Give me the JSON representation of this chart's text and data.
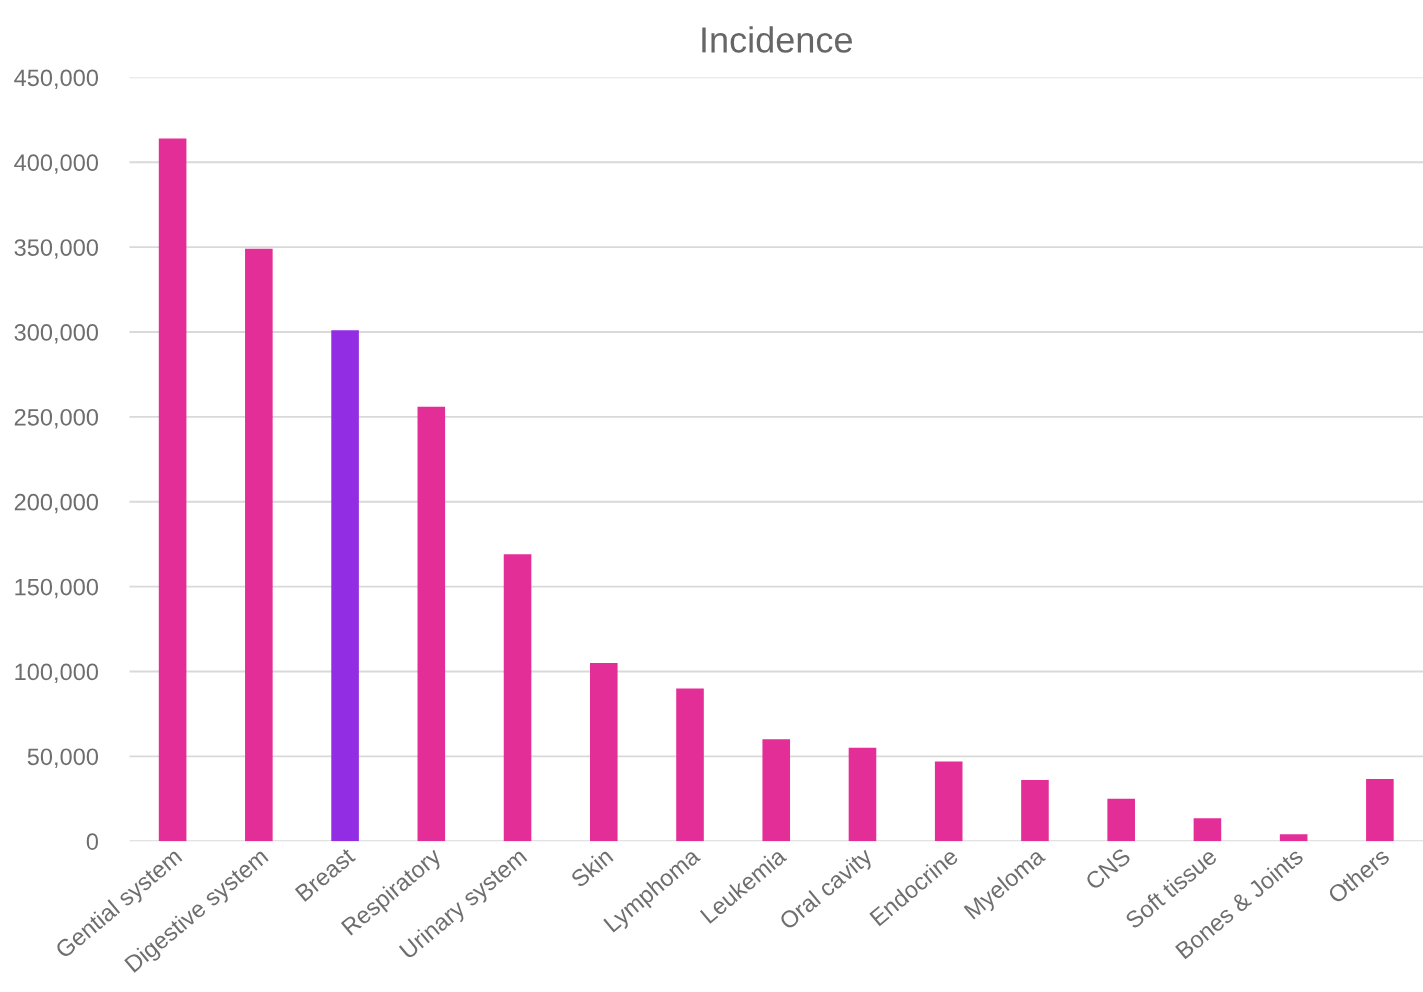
{
  "chart_data": {
    "type": "bar",
    "title": "Incidence",
    "categories": [
      "Gential system",
      "Digestive system",
      "Breast",
      "Respiratory",
      "Urinary system",
      "Skin",
      "Lymphoma",
      "Leukemia",
      "Oral cavity",
      "Endocrine",
      "Myeloma",
      "CNS",
      "Soft tissue",
      "Bones & Joints",
      "Others"
    ],
    "values": [
      414000,
      349000,
      301000,
      256000,
      169000,
      105000,
      90000,
      60000,
      55000,
      47000,
      36000,
      25000,
      13600,
      4100,
      36600
    ],
    "colors": [
      "#e32d97",
      "#e32d97",
      "#922de3",
      "#e32d97",
      "#e32d97",
      "#e32d97",
      "#e32d97",
      "#e32d97",
      "#e32d97",
      "#e32d97",
      "#e32d97",
      "#e32d97",
      "#e32d97",
      "#e32d97",
      "#e32d97"
    ],
    "ylim": [
      0,
      450000
    ],
    "yticks": [
      {
        "value": 0,
        "label": "0"
      },
      {
        "value": 50000,
        "label": "50,000"
      },
      {
        "value": 100000,
        "label": "100,000"
      },
      {
        "value": 150000,
        "label": "150,000"
      },
      {
        "value": 200000,
        "label": "200,000"
      },
      {
        "value": 250000,
        "label": "250,000"
      },
      {
        "value": 300000,
        "label": "300,000"
      },
      {
        "value": 350000,
        "label": "350,000"
      },
      {
        "value": 400000,
        "label": "400,000"
      },
      {
        "value": 450000,
        "label": "450,000"
      }
    ],
    "grid": "y",
    "legend": false
  }
}
